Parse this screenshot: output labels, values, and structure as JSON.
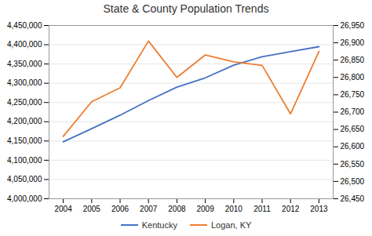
{
  "chart_data": {
    "type": "line",
    "title": "State & County Population Trends",
    "x": [
      2004,
      2005,
      2006,
      2007,
      2008,
      2009,
      2010,
      2011,
      2012,
      2013
    ],
    "xlim": [
      2003.5,
      2013.5
    ],
    "xticks": [
      2004,
      2005,
      2006,
      2007,
      2008,
      2009,
      2010,
      2011,
      2012,
      2013
    ],
    "series": [
      {
        "name": "Kentucky",
        "color": "#4472C4",
        "values": [
          4148000,
          4182000,
          4217000,
          4255000,
          4290000,
          4314000,
          4347000,
          4369000,
          4382000,
          4395000
        ]
      },
      {
        "name": "Logan, KY",
        "color": "#ED7D31",
        "axis": "y2",
        "values": [
          26630,
          26730,
          26770,
          26905,
          26800,
          26865,
          26845,
          26835,
          26695,
          26875
        ]
      }
    ],
    "ylim": [
      4000000,
      4450000
    ],
    "yticks": [
      {
        "value": 4000000,
        "label": "4,000,000"
      },
      {
        "value": 4050000,
        "label": "4,050,000"
      },
      {
        "value": 4100000,
        "label": "4,100,000"
      },
      {
        "value": 4150000,
        "label": "4,150,000"
      },
      {
        "value": 4200000,
        "label": "4,200,000"
      },
      {
        "value": 4250000,
        "label": "4,250,000"
      },
      {
        "value": 4300000,
        "label": "4,300,000"
      },
      {
        "value": 4350000,
        "label": "4,350,000"
      },
      {
        "value": 4400000,
        "label": "4,400,000"
      },
      {
        "value": 4450000,
        "label": "4,450,000"
      }
    ],
    "y2lim": [
      26450,
      26950
    ],
    "y2ticks": [
      {
        "value": 26450,
        "label": "26,450"
      },
      {
        "value": 26500,
        "label": "26,500"
      },
      {
        "value": 26550,
        "label": "26,550"
      },
      {
        "value": 26600,
        "label": "26,600"
      },
      {
        "value": 26650,
        "label": "26,650"
      },
      {
        "value": 26700,
        "label": "26,700"
      },
      {
        "value": 26750,
        "label": "26,750"
      },
      {
        "value": 26800,
        "label": "26,800"
      },
      {
        "value": 26850,
        "label": "26,850"
      },
      {
        "value": 26900,
        "label": "26,900"
      },
      {
        "value": 26950,
        "label": "26,950"
      }
    ],
    "grid": true,
    "legend": "bottom"
  }
}
